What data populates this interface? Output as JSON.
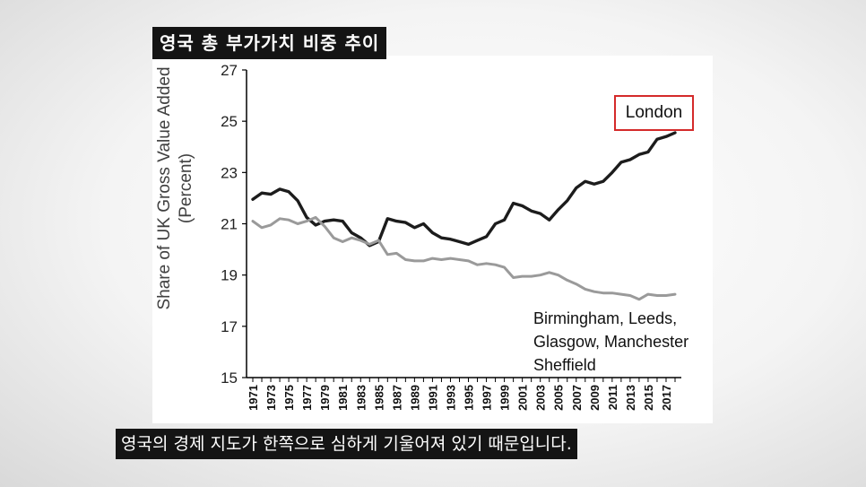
{
  "overlay": {
    "title": "영국 총 부가가치 비중 추이",
    "subtitle": "영국의 경제 지도가 한쪽으로 심하게 기울어져 있기 때문입니다."
  },
  "chart_data": {
    "type": "line",
    "ylabel_line1": "Share of UK Gross Value Added",
    "ylabel_line2": "(Percent)",
    "ylim": [
      15,
      27
    ],
    "yticks": [
      15,
      17,
      19,
      21,
      23,
      25,
      27
    ],
    "x": [
      1971,
      1972,
      1973,
      1974,
      1975,
      1976,
      1977,
      1978,
      1979,
      1980,
      1981,
      1982,
      1983,
      1984,
      1985,
      1986,
      1987,
      1988,
      1989,
      1990,
      1991,
      1992,
      1993,
      1994,
      1995,
      1996,
      1997,
      1998,
      1999,
      2000,
      2001,
      2002,
      2003,
      2004,
      2005,
      2006,
      2007,
      2008,
      2009,
      2010,
      2011,
      2012,
      2013,
      2014,
      2015,
      2016,
      2017,
      2018
    ],
    "xtick_labels": [
      "1971",
      "1973",
      "1975",
      "1977",
      "1979",
      "1981",
      "1983",
      "1985",
      "1987",
      "1989",
      "1991",
      "1993",
      "1995",
      "1997",
      "1999",
      "2001",
      "2003",
      "2005",
      "2007",
      "2009",
      "2011",
      "2013",
      "2015",
      "2017"
    ],
    "grid": false,
    "series": [
      {
        "name": "London",
        "color": "#1c1c1c",
        "values": [
          21.95,
          22.2,
          22.15,
          22.35,
          22.25,
          21.9,
          21.25,
          20.95,
          21.1,
          21.15,
          21.1,
          20.65,
          20.45,
          20.15,
          20.3,
          21.2,
          21.1,
          21.05,
          20.85,
          21.0,
          20.65,
          20.45,
          20.4,
          20.3,
          20.2,
          20.35,
          20.5,
          21.0,
          21.15,
          21.8,
          21.7,
          21.5,
          21.4,
          21.15,
          21.55,
          21.9,
          22.4,
          22.65,
          22.55,
          22.65,
          23.0,
          23.4,
          23.5,
          23.7,
          23.8,
          24.3,
          24.4,
          24.55
        ]
      },
      {
        "name": "Birmingham, Leeds, Glasgow, Manchester Sheffield",
        "label_lines": [
          "Birmingham, Leeds,",
          "Glasgow, Manchester",
          "Sheffield"
        ],
        "color": "#9a9a9a",
        "values": [
          21.1,
          20.85,
          20.95,
          21.2,
          21.15,
          21.0,
          21.1,
          21.25,
          20.9,
          20.45,
          20.3,
          20.45,
          20.35,
          20.2,
          20.35,
          19.8,
          19.85,
          19.6,
          19.55,
          19.55,
          19.65,
          19.6,
          19.65,
          19.6,
          19.55,
          19.4,
          19.45,
          19.4,
          19.3,
          18.9,
          18.95,
          18.95,
          19.0,
          19.1,
          19.0,
          18.8,
          18.65,
          18.45,
          18.35,
          18.3,
          18.3,
          18.25,
          18.2,
          18.05,
          18.25,
          18.2,
          18.2,
          18.25
        ]
      }
    ],
    "series_label_box_color": "#d42a2a"
  }
}
